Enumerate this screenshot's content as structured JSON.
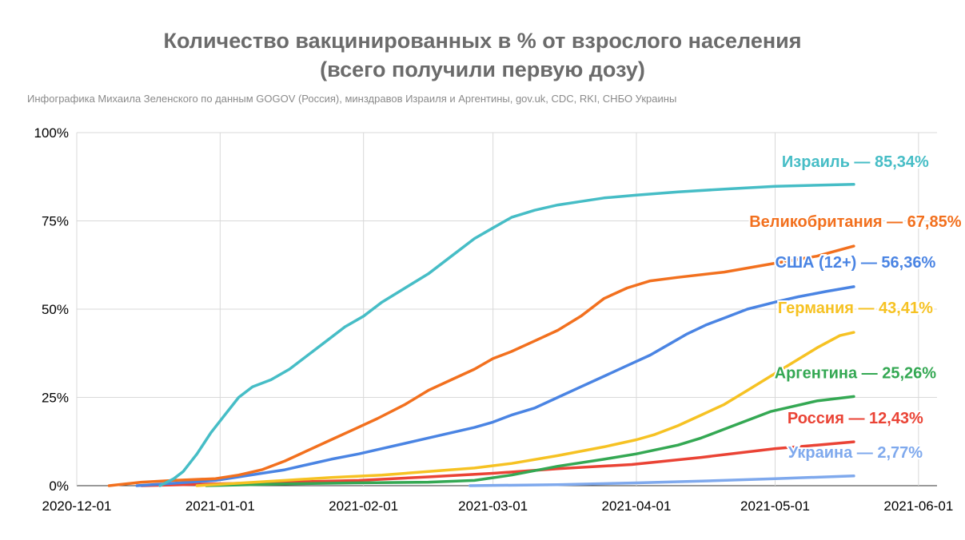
{
  "header": {
    "title_line1": "Количество вакцинированных в % от взрослого населения",
    "title_line2": "(всего получили первую дозу)",
    "subtitle": "Инфографика Михаила Зеленского по данным GOGOV (Россия), минздравов Израиля и Аргентины, gov.uk, CDC, RKI, СНБО Украины"
  },
  "chart_data": {
    "type": "line",
    "title": "Количество вакцинированных в % от взрослого населения (всего получили первую дозу)",
    "xlabel": "",
    "ylabel": "",
    "xlim": [
      "2020-12-01",
      "2021-06-05"
    ],
    "ylim": [
      0,
      100
    ],
    "x_ticks": [
      "2020-12-01",
      "2021-01-01",
      "2021-02-01",
      "2021-03-01",
      "2021-04-01",
      "2021-05-01",
      "2021-06-01"
    ],
    "y_ticks": [
      "0%",
      "25%",
      "50%",
      "75%",
      "100%"
    ],
    "grid": true,
    "legend": "inline labels at line ends",
    "series": [
      {
        "name": "Израиль",
        "label": "Израиль — 85,34%",
        "color": "#46bdc6",
        "points": [
          [
            "2020-12-19",
            0
          ],
          [
            "2020-12-22",
            2
          ],
          [
            "2020-12-24",
            4
          ],
          [
            "2020-12-27",
            9
          ],
          [
            "2020-12-30",
            15
          ],
          [
            "2021-01-02",
            20
          ],
          [
            "2021-01-05",
            25
          ],
          [
            "2021-01-08",
            28
          ],
          [
            "2021-01-12",
            30
          ],
          [
            "2021-01-16",
            33
          ],
          [
            "2021-01-20",
            37
          ],
          [
            "2021-01-24",
            41
          ],
          [
            "2021-01-28",
            45
          ],
          [
            "2021-02-01",
            48
          ],
          [
            "2021-02-05",
            52
          ],
          [
            "2021-02-10",
            56
          ],
          [
            "2021-02-15",
            60
          ],
          [
            "2021-02-20",
            65
          ],
          [
            "2021-02-25",
            70
          ],
          [
            "2021-03-01",
            73
          ],
          [
            "2021-03-05",
            76
          ],
          [
            "2021-03-10",
            78
          ],
          [
            "2021-03-15",
            79.5
          ],
          [
            "2021-03-20",
            80.5
          ],
          [
            "2021-03-25",
            81.5
          ],
          [
            "2021-04-01",
            82.3
          ],
          [
            "2021-04-10",
            83.2
          ],
          [
            "2021-04-20",
            84
          ],
          [
            "2021-05-01",
            84.8
          ],
          [
            "2021-05-10",
            85.1
          ],
          [
            "2021-05-18",
            85.34
          ]
        ]
      },
      {
        "name": "Великобритания",
        "label": "Великобритания — 67,85%",
        "color": "#f2701e",
        "points": [
          [
            "2020-12-08",
            0
          ],
          [
            "2020-12-15",
            1
          ],
          [
            "2020-12-22",
            1.5
          ],
          [
            "2020-12-31",
            2
          ],
          [
            "2021-01-05",
            3
          ],
          [
            "2021-01-10",
            4.5
          ],
          [
            "2021-01-15",
            7
          ],
          [
            "2021-01-20",
            10
          ],
          [
            "2021-01-25",
            13
          ],
          [
            "2021-01-30",
            16
          ],
          [
            "2021-02-04",
            19
          ],
          [
            "2021-02-10",
            23
          ],
          [
            "2021-02-15",
            27
          ],
          [
            "2021-02-20",
            30
          ],
          [
            "2021-02-25",
            33
          ],
          [
            "2021-03-01",
            36
          ],
          [
            "2021-03-05",
            38
          ],
          [
            "2021-03-10",
            41
          ],
          [
            "2021-03-15",
            44
          ],
          [
            "2021-03-20",
            48
          ],
          [
            "2021-03-25",
            53
          ],
          [
            "2021-03-30",
            56
          ],
          [
            "2021-04-04",
            58
          ],
          [
            "2021-04-10",
            59
          ],
          [
            "2021-04-20",
            60.5
          ],
          [
            "2021-05-01",
            63
          ],
          [
            "2021-05-10",
            65
          ],
          [
            "2021-05-18",
            67.85
          ]
        ]
      },
      {
        "name": "США (12+)",
        "label": "США (12+) — 56,36%",
        "color": "#4a84e3",
        "points": [
          [
            "2020-12-14",
            0
          ],
          [
            "2020-12-20",
            0.5
          ],
          [
            "2020-12-31",
            1.5
          ],
          [
            "2021-01-05",
            2.5
          ],
          [
            "2021-01-10",
            3.5
          ],
          [
            "2021-01-15",
            4.5
          ],
          [
            "2021-01-20",
            6
          ],
          [
            "2021-01-25",
            7.5
          ],
          [
            "2021-01-31",
            9
          ],
          [
            "2021-02-05",
            10.5
          ],
          [
            "2021-02-10",
            12
          ],
          [
            "2021-02-15",
            13.5
          ],
          [
            "2021-02-20",
            15
          ],
          [
            "2021-02-25",
            16.5
          ],
          [
            "2021-03-01",
            18
          ],
          [
            "2021-03-05",
            20
          ],
          [
            "2021-03-10",
            22
          ],
          [
            "2021-03-15",
            25
          ],
          [
            "2021-03-20",
            28
          ],
          [
            "2021-03-25",
            31
          ],
          [
            "2021-03-30",
            34
          ],
          [
            "2021-04-04",
            37
          ],
          [
            "2021-04-08",
            40
          ],
          [
            "2021-04-12",
            43
          ],
          [
            "2021-04-16",
            45.5
          ],
          [
            "2021-04-20",
            47.5
          ],
          [
            "2021-04-25",
            50
          ],
          [
            "2021-05-01",
            52
          ],
          [
            "2021-05-06",
            53.5
          ],
          [
            "2021-05-12",
            55
          ],
          [
            "2021-05-18",
            56.36
          ]
        ]
      },
      {
        "name": "Германия",
        "label": "Германия — 43,41%",
        "color": "#f6c223",
        "points": [
          [
            "2020-12-27",
            0
          ],
          [
            "2021-01-05",
            0.7
          ],
          [
            "2021-01-15",
            1.5
          ],
          [
            "2021-01-25",
            2.3
          ],
          [
            "2021-02-05",
            3
          ],
          [
            "2021-02-15",
            4
          ],
          [
            "2021-02-25",
            5
          ],
          [
            "2021-03-05",
            6.3
          ],
          [
            "2021-03-15",
            8.5
          ],
          [
            "2021-03-25",
            11
          ],
          [
            "2021-04-01",
            13
          ],
          [
            "2021-04-05",
            14.5
          ],
          [
            "2021-04-10",
            17
          ],
          [
            "2021-04-15",
            20
          ],
          [
            "2021-04-20",
            23
          ],
          [
            "2021-04-25",
            27
          ],
          [
            "2021-04-30",
            31
          ],
          [
            "2021-05-05",
            35
          ],
          [
            "2021-05-10",
            39
          ],
          [
            "2021-05-15",
            42.5
          ],
          [
            "2021-05-18",
            43.41
          ]
        ]
      },
      {
        "name": "Аргентина",
        "label": "Аргентина — 25,26%",
        "color": "#34a853",
        "points": [
          [
            "2020-12-29",
            0
          ],
          [
            "2021-01-15",
            0.5
          ],
          [
            "2021-01-30",
            0.8
          ],
          [
            "2021-02-15",
            1
          ],
          [
            "2021-02-25",
            1.5
          ],
          [
            "2021-03-05",
            3
          ],
          [
            "2021-03-15",
            5.5
          ],
          [
            "2021-03-25",
            7.5
          ],
          [
            "2021-04-01",
            9
          ],
          [
            "2021-04-10",
            11.5
          ],
          [
            "2021-04-15",
            13.5
          ],
          [
            "2021-04-20",
            16
          ],
          [
            "2021-04-25",
            18.5
          ],
          [
            "2021-04-30",
            21
          ],
          [
            "2021-05-05",
            22.5
          ],
          [
            "2021-05-10",
            24
          ],
          [
            "2021-05-18",
            25.26
          ]
        ]
      },
      {
        "name": "Россия",
        "label": "Россия — 12,43%",
        "color": "#ea4335",
        "points": [
          [
            "2020-12-15",
            0
          ],
          [
            "2020-12-31",
            0.5
          ],
          [
            "2021-01-15",
            1
          ],
          [
            "2021-01-31",
            1.5
          ],
          [
            "2021-02-15",
            2.5
          ],
          [
            "2021-03-01",
            3.5
          ],
          [
            "2021-03-15",
            4.8
          ],
          [
            "2021-03-31",
            6
          ],
          [
            "2021-04-15",
            8
          ],
          [
            "2021-05-01",
            10.5
          ],
          [
            "2021-05-10",
            11.5
          ],
          [
            "2021-05-18",
            12.43
          ]
        ]
      },
      {
        "name": "Украина",
        "label": "Украина — 2,77%",
        "color": "#7fa9ed",
        "points": [
          [
            "2021-02-24",
            0
          ],
          [
            "2021-03-15",
            0.3
          ],
          [
            "2021-04-01",
            0.8
          ],
          [
            "2021-04-15",
            1.3
          ],
          [
            "2021-05-01",
            2
          ],
          [
            "2021-05-18",
            2.77
          ]
        ]
      }
    ]
  }
}
